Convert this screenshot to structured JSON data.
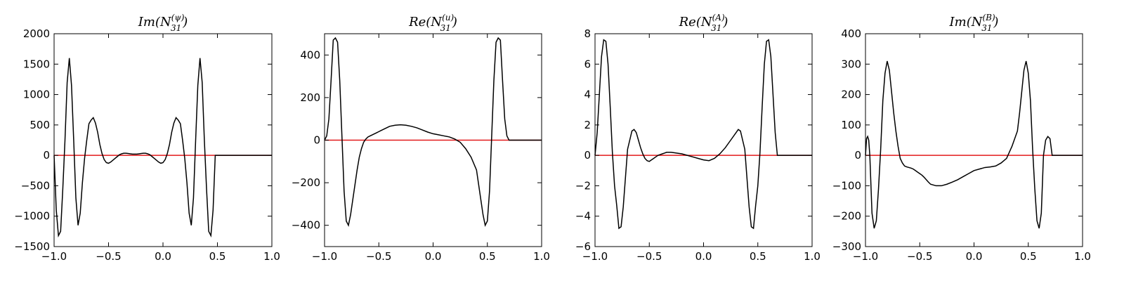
{
  "chart_data": [
    {
      "type": "line",
      "title": {
        "prefix": "Im(N",
        "sup": "(ψ)",
        "sub": "31",
        "suffix": ")"
      },
      "xlim": [
        -1.0,
        1.0
      ],
      "ylim": [
        -1500,
        2000
      ],
      "xticks": [
        -1.0,
        -0.5,
        0.0,
        0.5,
        1.0
      ],
      "xtick_labels": [
        "−1.0",
        "−0.5",
        "0.0",
        "0.5",
        "1.0"
      ],
      "yticks": [
        -1500,
        -1000,
        -500,
        0,
        500,
        1000,
        1500,
        2000
      ],
      "ytick_labels": [
        "−1500",
        "−1000",
        "−500",
        "0",
        "500",
        "1000",
        "1500",
        "2000"
      ],
      "reference_line": {
        "y": 0,
        "color": "#e31a1c"
      },
      "series": [
        {
          "x": [
            -1.0,
            -0.98,
            -0.96,
            -0.94,
            -0.92,
            -0.9,
            -0.88,
            -0.86,
            -0.84,
            -0.82,
            -0.8,
            -0.78,
            -0.76,
            -0.74,
            -0.72,
            -0.7,
            -0.68,
            -0.66,
            -0.64,
            -0.62,
            -0.6,
            -0.58,
            -0.56,
            -0.54,
            -0.52,
            -0.5,
            -0.48,
            -0.46,
            -0.44,
            -0.42,
            -0.4,
            -0.38,
            -0.36,
            -0.34,
            -0.32,
            -0.3,
            -0.28,
            -0.26,
            -0.24,
            -0.22,
            -0.2,
            -0.18,
            -0.16,
            -0.14,
            -0.12,
            -0.1,
            -0.08,
            -0.06,
            -0.04,
            -0.02,
            0.0,
            0.02,
            0.04,
            0.06,
            0.08,
            0.1,
            0.12,
            0.14,
            0.16,
            0.18,
            0.2,
            0.22,
            0.24,
            0.26,
            0.28,
            0.3,
            0.32,
            0.34,
            0.36,
            0.38,
            0.4,
            0.42,
            0.44,
            0.46,
            0.48,
            0.5,
            0.52,
            0.54,
            0.56,
            0.58,
            0.6,
            0.62,
            0.64,
            0.66,
            0.68,
            0.7,
            0.72,
            0.74,
            0.76,
            0.78,
            0.8,
            0.82,
            0.84,
            0.86,
            0.88,
            0.9,
            0.92,
            0.94,
            0.96,
            0.98,
            1.0
          ],
          "y": [
            0,
            -900,
            -1320,
            -1250,
            -550,
            250,
            1200,
            1600,
            1150,
            250,
            -700,
            -1150,
            -950,
            -450,
            -50,
            250,
            520,
            580,
            620,
            530,
            380,
            180,
            30,
            -70,
            -120,
            -130,
            -110,
            -80,
            -50,
            -20,
            10,
            25,
            35,
            35,
            30,
            25,
            20,
            20,
            20,
            25,
            30,
            35,
            35,
            25,
            10,
            -20,
            -50,
            -80,
            -110,
            -130,
            -120,
            -70,
            30,
            180,
            380,
            530,
            620,
            580,
            520,
            250,
            -50,
            -450,
            -950,
            -1150,
            -700,
            250,
            1150,
            1600,
            1200,
            250,
            -550,
            -1250,
            -1320,
            -900,
            0,
            0,
            0,
            0,
            0,
            0,
            0,
            0,
            0,
            0,
            0,
            0,
            0,
            0,
            0,
            0,
            0,
            0,
            0,
            0,
            0,
            0,
            0,
            0,
            0,
            0,
            0
          ]
        }
      ]
    },
    {
      "type": "line",
      "title": {
        "prefix": "Re(N",
        "sup": "(u)",
        "sub": "31",
        "suffix": ")"
      },
      "xlim": [
        -1.0,
        1.0
      ],
      "ylim": [
        -500,
        500
      ],
      "xticks": [
        -1.0,
        -0.5,
        0.0,
        0.5,
        1.0
      ],
      "xtick_labels": [
        "−1.0",
        "−0.5",
        "0.0",
        "0.5",
        "1.0"
      ],
      "yticks": [
        -400,
        -200,
        0,
        200,
        400
      ],
      "ytick_labels": [
        "−400",
        "−200",
        "0",
        "200",
        "400"
      ],
      "reference_line": {
        "y": 0,
        "color": "#e31a1c"
      },
      "series": [
        {
          "x": [
            -1.0,
            -0.98,
            -0.96,
            -0.94,
            -0.92,
            -0.9,
            -0.88,
            -0.86,
            -0.84,
            -0.82,
            -0.8,
            -0.78,
            -0.76,
            -0.74,
            -0.72,
            -0.7,
            -0.68,
            -0.66,
            -0.64,
            -0.62,
            -0.6,
            -0.58,
            -0.56,
            -0.54,
            -0.52,
            -0.5,
            -0.48,
            -0.46,
            -0.44,
            -0.42,
            -0.4,
            -0.35,
            -0.3,
            -0.25,
            -0.2,
            -0.15,
            -0.1,
            -0.05,
            0.0,
            0.05,
            0.1,
            0.15,
            0.2,
            0.25,
            0.3,
            0.35,
            0.4,
            0.42,
            0.44,
            0.46,
            0.48,
            0.5,
            0.52,
            0.54,
            0.56,
            0.58,
            0.6,
            0.62,
            0.64,
            0.66,
            0.68,
            0.7,
            0.72,
            0.74,
            0.76,
            0.78,
            0.8,
            0.82,
            0.84,
            0.86,
            0.88,
            0.9,
            0.92,
            0.94,
            0.96,
            0.98,
            1.0
          ],
          "y": [
            0,
            20,
            100,
            280,
            470,
            480,
            460,
            280,
            20,
            -240,
            -380,
            -400,
            -350,
            -280,
            -210,
            -140,
            -80,
            -40,
            -10,
            5,
            15,
            20,
            25,
            30,
            35,
            40,
            45,
            50,
            55,
            60,
            65,
            70,
            72,
            70,
            65,
            58,
            48,
            38,
            30,
            25,
            20,
            15,
            5,
            -10,
            -40,
            -80,
            -140,
            -210,
            -280,
            -350,
            -400,
            -380,
            -240,
            20,
            280,
            460,
            480,
            470,
            280,
            100,
            20,
            0,
            0,
            0,
            0,
            0,
            0,
            0,
            0,
            0,
            0,
            0,
            0,
            0,
            0,
            0,
            0
          ]
        }
      ]
    },
    {
      "type": "line",
      "title": {
        "prefix": "Re(N",
        "sup": "(A)",
        "sub": "31",
        "suffix": ")"
      },
      "xlim": [
        -1.0,
        1.0
      ],
      "ylim": [
        -6,
        8
      ],
      "xticks": [
        -1.0,
        -0.5,
        0.0,
        0.5,
        1.0
      ],
      "xtick_labels": [
        "−1.0",
        "−0.5",
        "0.0",
        "0.5",
        "1.0"
      ],
      "yticks": [
        -6,
        -4,
        -2,
        0,
        2,
        4,
        6,
        8
      ],
      "ytick_labels": [
        "−6",
        "−4",
        "−2",
        "0",
        "2",
        "4",
        "6",
        "8"
      ],
      "reference_line": {
        "y": 0,
        "color": "#e31a1c"
      },
      "series": [
        {
          "x": [
            -1.0,
            -0.98,
            -0.96,
            -0.94,
            -0.92,
            -0.9,
            -0.88,
            -0.86,
            -0.84,
            -0.82,
            -0.8,
            -0.78,
            -0.76,
            -0.74,
            -0.72,
            -0.7,
            -0.68,
            -0.66,
            -0.64,
            -0.62,
            -0.6,
            -0.58,
            -0.56,
            -0.54,
            -0.52,
            -0.5,
            -0.48,
            -0.46,
            -0.44,
            -0.42,
            -0.4,
            -0.38,
            -0.36,
            -0.34,
            -0.32,
            -0.3,
            -0.25,
            -0.2,
            -0.15,
            -0.1,
            -0.05,
            0.0,
            0.05,
            0.1,
            0.15,
            0.2,
            0.25,
            0.3,
            0.32,
            0.34,
            0.36,
            0.38,
            0.4,
            0.42,
            0.44,
            0.46,
            0.48,
            0.5,
            0.52,
            0.54,
            0.56,
            0.58,
            0.6,
            0.62,
            0.64,
            0.66,
            0.68,
            0.7,
            0.72,
            0.74,
            0.76,
            0.78,
            0.8,
            0.82,
            0.84,
            0.86,
            0.88,
            0.9,
            0.92,
            0.94,
            0.96,
            0.98,
            1.0
          ],
          "y": [
            0,
            1.5,
            4.0,
            6.5,
            7.6,
            7.5,
            6.0,
            3.2,
            0.2,
            -2.0,
            -3.3,
            -4.8,
            -4.7,
            -3.4,
            -1.5,
            0.4,
            1.0,
            1.6,
            1.7,
            1.5,
            1.0,
            0.5,
            0.1,
            -0.2,
            -0.35,
            -0.4,
            -0.3,
            -0.2,
            -0.1,
            0.0,
            0.05,
            0.1,
            0.15,
            0.2,
            0.2,
            0.2,
            0.15,
            0.1,
            0.0,
            -0.1,
            -0.2,
            -0.3,
            -0.35,
            -0.2,
            0.1,
            0.5,
            1.0,
            1.5,
            1.7,
            1.6,
            1.0,
            0.4,
            -1.5,
            -3.4,
            -4.7,
            -4.8,
            -3.3,
            -2.0,
            0.2,
            3.2,
            6.0,
            7.5,
            7.6,
            6.5,
            4.0,
            1.5,
            0,
            0,
            0,
            0,
            0,
            0,
            0,
            0,
            0,
            0,
            0,
            0,
            0,
            0,
            0,
            0,
            0
          ]
        }
      ]
    },
    {
      "type": "line",
      "title": {
        "prefix": "Im(N",
        "sup": "(B)",
        "sub": "31",
        "suffix": ")"
      },
      "xlim": [
        -1.0,
        1.0
      ],
      "ylim": [
        -300,
        400
      ],
      "xticks": [
        -1.0,
        -0.5,
        0.0,
        0.5,
        1.0
      ],
      "xtick_labels": [
        "−1.0",
        "−0.5",
        "0.0",
        "0.5",
        "1.0"
      ],
      "yticks": [
        -300,
        -200,
        -100,
        0,
        100,
        200,
        300,
        400
      ],
      "ytick_labels": [
        "−300",
        "−200",
        "−100",
        "0",
        "100",
        "200",
        "300",
        "400"
      ],
      "reference_line": {
        "y": 0,
        "color": "#e31a1c"
      },
      "series": [
        {
          "x": [
            -1.0,
            -0.99,
            -0.98,
            -0.97,
            -0.96,
            -0.94,
            -0.92,
            -0.9,
            -0.88,
            -0.86,
            -0.84,
            -0.82,
            -0.8,
            -0.78,
            -0.76,
            -0.74,
            -0.72,
            -0.7,
            -0.68,
            -0.66,
            -0.64,
            -0.62,
            -0.6,
            -0.58,
            -0.56,
            -0.54,
            -0.52,
            -0.5,
            -0.48,
            -0.46,
            -0.44,
            -0.42,
            -0.4,
            -0.35,
            -0.3,
            -0.25,
            -0.2,
            -0.15,
            -0.1,
            -0.05,
            0.0,
            0.05,
            0.1,
            0.15,
            0.2,
            0.25,
            0.3,
            0.35,
            0.4,
            0.42,
            0.44,
            0.46,
            0.48,
            0.5,
            0.52,
            0.54,
            0.56,
            0.58,
            0.6,
            0.62,
            0.64,
            0.66,
            0.68,
            0.7,
            0.72,
            0.74,
            0.76,
            0.78,
            0.8,
            0.82,
            0.84,
            0.86,
            0.88,
            0.9,
            0.92,
            0.94,
            0.96,
            0.97,
            0.98,
            0.99,
            1.0
          ],
          "y": [
            0,
            55,
            62,
            50,
            0,
            -190,
            -240,
            -215,
            -110,
            20,
            180,
            270,
            310,
            280,
            210,
            140,
            80,
            30,
            -10,
            -25,
            -35,
            -38,
            -40,
            -42,
            -45,
            -50,
            -55,
            -60,
            -65,
            -72,
            -80,
            -88,
            -95,
            -100,
            -100,
            -95,
            -88,
            -80,
            -70,
            -60,
            -50,
            -45,
            -40,
            -38,
            -35,
            -25,
            -10,
            30,
            80,
            140,
            210,
            280,
            310,
            270,
            180,
            20,
            -110,
            -215,
            -240,
            -190,
            0,
            50,
            62,
            55,
            0,
            0,
            0,
            0,
            0,
            0,
            0,
            0,
            0,
            0,
            0,
            0,
            0,
            0,
            0,
            0,
            0
          ]
        }
      ]
    }
  ]
}
